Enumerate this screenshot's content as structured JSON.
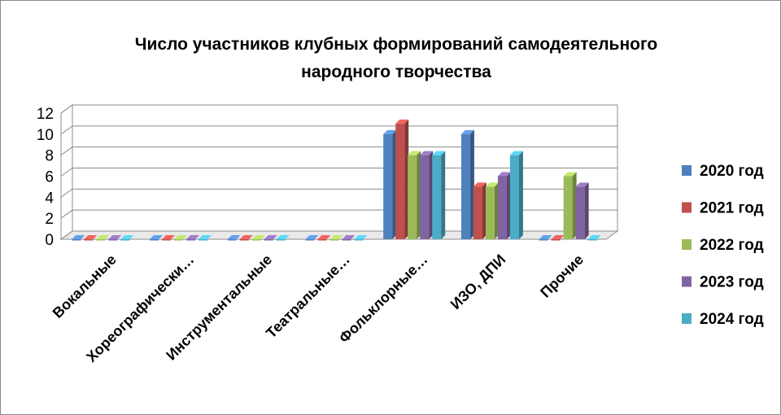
{
  "chart_data": {
    "type": "bar",
    "title": "Число участников клубных формирований самодеятельного народного творчества",
    "title_lines": [
      "Число участников клубных формирований самодеятельного",
      "народного творчества"
    ],
    "xlabel": "",
    "ylabel": "",
    "ylim": [
      0,
      12
    ],
    "yticks": [
      "0",
      "2",
      "4",
      "6",
      "8",
      "10",
      "12"
    ],
    "grid": true,
    "legend_position": "right",
    "categories": [
      "Вокальные",
      "Хореографически…",
      "Инструментальные",
      "Театральные…",
      "Фольклорные…",
      "ИЗО, ДПИ",
      "Прочие"
    ],
    "series": [
      {
        "name": "2020 год",
        "color": "#4F81BD",
        "values": [
          0,
          0,
          0,
          0,
          10,
          10,
          0
        ]
      },
      {
        "name": "2021 год",
        "color": "#C0504D",
        "values": [
          0,
          0,
          0,
          0,
          11,
          5,
          0
        ]
      },
      {
        "name": "2022 год",
        "color": "#9BBB59",
        "values": [
          0,
          0,
          0,
          0,
          8,
          5,
          6
        ]
      },
      {
        "name": "2023 год",
        "color": "#8064A2",
        "values": [
          0,
          0,
          0,
          0,
          8,
          6,
          5
        ]
      },
      {
        "name": "2024 год",
        "color": "#4BACC6",
        "values": [
          0,
          0,
          0,
          0,
          8,
          8,
          0
        ]
      }
    ]
  }
}
